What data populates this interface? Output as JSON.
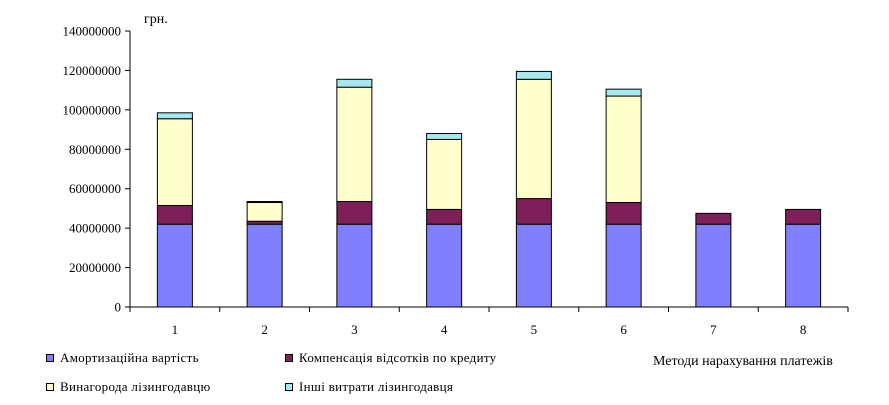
{
  "chart_data": {
    "type": "bar",
    "stacked": true,
    "categories": [
      "1",
      "2",
      "3",
      "4",
      "5",
      "6",
      "7",
      "8"
    ],
    "series": [
      {
        "name": "Амортизаційна вартість",
        "color": "#8080ff",
        "values": [
          42000000,
          42000000,
          42000000,
          42000000,
          42000000,
          42000000,
          42000000,
          42000000
        ]
      },
      {
        "name": "Компенсація відсотків по кредиту",
        "color": "#7f1f5a",
        "values": [
          9500000,
          1500000,
          11500000,
          7500000,
          13000000,
          11000000,
          5500000,
          7500000
        ]
      },
      {
        "name": "Винагорода лізингодавцю",
        "color": "#ffffcc",
        "values": [
          44000000,
          9500000,
          58000000,
          35500000,
          60500000,
          54000000,
          0,
          0
        ]
      },
      {
        "name": "Інші витрати лізингодавця",
        "color": "#a6e8f0",
        "values": [
          3000000,
          500000,
          4000000,
          3000000,
          4000000,
          3500000,
          0,
          0
        ]
      }
    ],
    "ylim": [
      0,
      140000000
    ],
    "yticks": [
      "0",
      "20000000",
      "40000000",
      "60000000",
      "80000000",
      "100000000",
      "120000000",
      "140000000"
    ],
    "ylabel": "грн.",
    "xlabel": "Методи нарахування платежів",
    "legend": "bottom-left",
    "grid": false
  }
}
